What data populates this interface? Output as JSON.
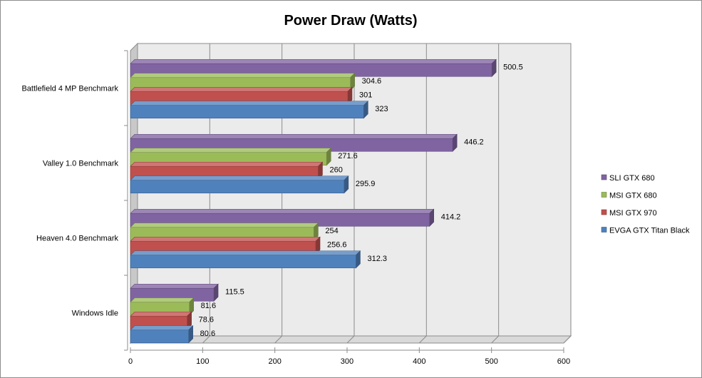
{
  "chart_data": {
    "type": "bar",
    "orientation": "horizontal",
    "style": "3d-clustered",
    "title": "Power Draw (Watts)",
    "xlabel": "",
    "ylabel": "",
    "xlim": [
      0,
      600
    ],
    "x_ticks": [
      0,
      100,
      200,
      300,
      400,
      500,
      600
    ],
    "grid": true,
    "legend_position": "right",
    "categories": [
      "Battlefield 4 MP Benchmark",
      "Valley 1.0 Benchmark",
      "Heaven 4.0 Benchmark",
      "Windows Idle"
    ],
    "series": [
      {
        "name": "SLI GTX 680",
        "color": "#8064a2",
        "values": [
          500.5,
          446.2,
          414.2,
          115.5
        ]
      },
      {
        "name": "MSI GTX 680",
        "color": "#9bbb59",
        "values": [
          304.6,
          271.6,
          254,
          81.6
        ]
      },
      {
        "name": "MSI GTX 970",
        "color": "#c0504d",
        "values": [
          301,
          260,
          256.6,
          78.6
        ]
      },
      {
        "name": "EVGA GTX Titan Black",
        "color": "#4f81bd",
        "values": [
          323,
          295.9,
          312.3,
          80.6
        ]
      }
    ]
  }
}
